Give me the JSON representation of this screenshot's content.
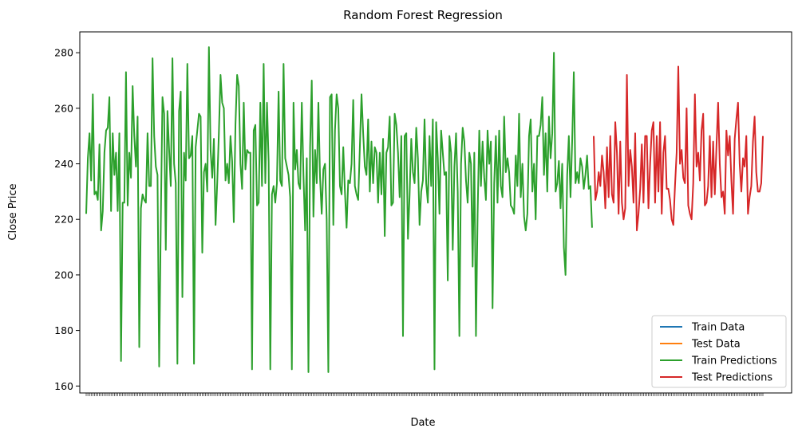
{
  "chart_data": {
    "type": "line",
    "title": "Random Forest Regression",
    "xlabel": "Date",
    "ylabel": "Close Price",
    "ylim": [
      157.5,
      287.5
    ],
    "yticks": [
      160,
      180,
      200,
      220,
      240,
      260,
      280
    ],
    "grid": false,
    "legend_position": "lower-right",
    "colors": {
      "train_data": "#1f77b4",
      "test_data": "#ff7f0e",
      "train_predictions": "#2ca02c",
      "test_predictions": "#d62728"
    },
    "series": [
      {
        "name": "Train Data",
        "values": []
      },
      {
        "name": "Test Data",
        "values": []
      },
      {
        "name": "Train Predictions",
        "values": [
          222,
          242,
          251,
          234,
          265,
          229,
          230,
          227,
          247,
          216,
          223,
          244,
          252,
          253,
          264,
          223,
          251,
          236,
          244,
          223,
          251,
          169,
          226,
          226,
          273,
          225,
          244,
          235,
          268,
          250,
          239,
          257,
          174,
          224,
          229,
          227,
          226,
          251,
          232,
          232,
          278,
          250,
          239,
          236,
          167,
          220,
          264,
          258,
          209,
          259,
          245,
          232,
          278,
          240,
          233,
          168,
          259,
          266,
          192,
          244,
          234,
          276,
          242,
          243,
          250,
          168,
          246,
          252,
          258,
          257,
          208,
          237,
          240,
          230,
          282,
          245,
          235,
          249,
          218,
          233,
          251,
          272,
          262,
          260,
          234,
          240,
          233,
          250,
          241,
          219,
          254,
          272,
          268,
          240,
          231,
          262,
          238,
          245,
          244,
          244,
          166,
          252,
          254,
          225,
          226,
          262,
          232,
          276,
          233,
          262,
          241,
          166,
          229,
          232,
          226,
          233,
          266,
          234,
          232,
          276,
          242,
          239,
          236,
          228,
          166,
          262,
          238,
          245,
          233,
          231,
          262,
          236,
          216,
          242,
          165,
          246,
          270,
          221,
          245,
          233,
          262,
          235,
          222,
          238,
          240,
          220,
          165,
          264,
          265,
          218,
          252,
          265,
          260,
          232,
          229,
          246,
          230,
          217,
          234,
          233,
          240,
          263,
          232,
          229,
          227,
          246,
          265,
          251,
          239,
          236,
          256,
          230,
          248,
          233,
          246,
          244,
          226,
          244,
          229,
          249,
          214,
          244,
          246,
          257,
          225,
          226,
          258,
          254,
          244,
          228,
          250,
          178,
          250,
          251,
          213,
          229,
          249,
          237,
          233,
          253,
          242,
          218,
          230,
          234,
          256,
          233,
          226,
          250,
          232,
          256,
          166,
          255,
          242,
          222,
          252,
          244,
          236,
          237,
          198,
          250,
          244,
          209,
          239,
          251,
          230,
          178,
          240,
          253,
          248,
          234,
          226,
          244,
          240,
          203,
          244,
          178,
          222,
          252,
          232,
          248,
          235,
          227,
          252,
          240,
          248,
          188,
          233,
          250,
          226,
          252,
          232,
          228,
          257,
          237,
          242,
          237,
          225,
          224,
          222,
          243,
          232,
          258,
          228,
          240,
          221,
          216,
          222,
          250,
          256,
          230,
          240,
          220,
          250,
          250,
          254,
          264,
          236,
          251,
          230,
          257,
          242,
          251,
          280,
          230,
          233,
          241,
          224,
          240,
          210,
          200,
          236,
          250,
          228,
          248,
          273,
          233,
          237,
          233,
          242,
          239,
          231,
          236,
          243,
          231,
          232,
          217
        ]
      },
      {
        "name": "Test Predictions",
        "values": [
          250,
          227,
          230,
          237,
          232,
          243,
          237,
          224,
          246,
          228,
          250,
          229,
          226,
          255,
          244,
          222,
          248,
          226,
          220,
          224,
          272,
          232,
          245,
          239,
          226,
          251,
          216,
          222,
          231,
          247,
          226,
          250,
          250,
          224,
          240,
          252,
          255,
          226,
          250,
          230,
          255,
          222,
          244,
          250,
          231,
          231,
          227,
          220,
          218,
          232,
          244,
          275,
          240,
          245,
          235,
          233,
          260,
          225,
          222,
          220,
          233,
          265,
          239,
          244,
          234,
          252,
          258,
          225,
          226,
          232,
          250,
          228,
          248,
          229,
          246,
          262,
          240,
          228,
          230,
          222,
          252,
          243,
          250,
          234,
          222,
          249,
          256,
          262,
          240,
          230,
          242,
          239,
          250,
          222,
          228,
          232,
          248,
          257,
          237,
          230,
          230,
          233,
          250
        ]
      }
    ]
  }
}
